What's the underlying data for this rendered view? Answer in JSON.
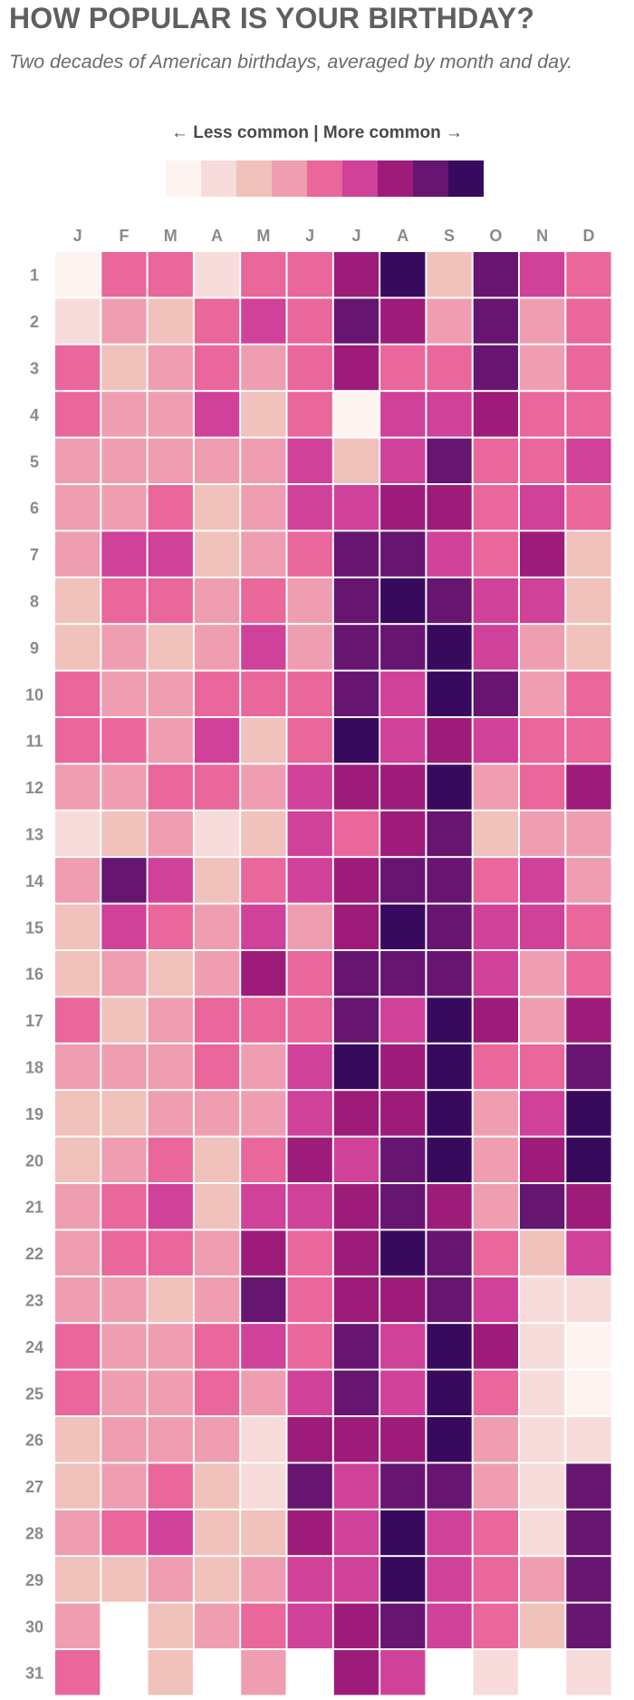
{
  "title": "HOW POPULAR IS YOUR BIRTHDAY?",
  "subtitle": "Two decades of American birthdays, averaged by month and day.",
  "legend": {
    "label": "← Less common | More common →",
    "colors": [
      "#fdf4f1",
      "#f7dcdb",
      "#f1c1bb",
      "#ef9eb1",
      "#e9679a",
      "#d0419a",
      "#9d1c7a",
      "#661571",
      "#380a5e"
    ]
  },
  "chart_data": {
    "type": "heatmap",
    "x": [
      "J",
      "F",
      "M",
      "A",
      "M",
      "J",
      "J",
      "A",
      "S",
      "O",
      "N",
      "D"
    ],
    "y": [
      "1",
      "2",
      "3",
      "4",
      "5",
      "6",
      "7",
      "8",
      "9",
      "10",
      "11",
      "12",
      "13",
      "14",
      "15",
      "16",
      "17",
      "18",
      "19",
      "20",
      "21",
      "22",
      "23",
      "24",
      "25",
      "26",
      "27",
      "28",
      "29",
      "30",
      "31"
    ],
    "value_scale": "popularity level 1 (less common) to 9 (more common); 0 = no such date",
    "values": [
      [
        1,
        5,
        5,
        2,
        5,
        5,
        7,
        9,
        3,
        8,
        6,
        5
      ],
      [
        2,
        4,
        3,
        5,
        6,
        5,
        8,
        7,
        4,
        8,
        4,
        5
      ],
      [
        5,
        3,
        4,
        5,
        4,
        5,
        7,
        5,
        5,
        8,
        4,
        5
      ],
      [
        5,
        4,
        4,
        6,
        3,
        5,
        1,
        6,
        6,
        7,
        5,
        5
      ],
      [
        4,
        4,
        4,
        4,
        4,
        6,
        3,
        6,
        8,
        5,
        5,
        6
      ],
      [
        4,
        4,
        5,
        3,
        4,
        6,
        6,
        7,
        7,
        5,
        6,
        5
      ],
      [
        4,
        6,
        6,
        3,
        4,
        5,
        8,
        8,
        6,
        5,
        7,
        3
      ],
      [
        3,
        5,
        5,
        4,
        5,
        4,
        8,
        9,
        8,
        6,
        6,
        3
      ],
      [
        3,
        4,
        3,
        4,
        6,
        4,
        8,
        8,
        9,
        6,
        4,
        3
      ],
      [
        5,
        4,
        4,
        5,
        5,
        5,
        8,
        6,
        9,
        8,
        4,
        5
      ],
      [
        5,
        5,
        4,
        6,
        3,
        5,
        9,
        6,
        7,
        6,
        5,
        5
      ],
      [
        4,
        4,
        5,
        5,
        4,
        6,
        7,
        7,
        9,
        4,
        5,
        7
      ],
      [
        2,
        3,
        4,
        2,
        3,
        6,
        5,
        7,
        8,
        3,
        4,
        4
      ],
      [
        4,
        8,
        6,
        3,
        5,
        6,
        7,
        8,
        8,
        5,
        6,
        4
      ],
      [
        3,
        6,
        5,
        4,
        6,
        4,
        7,
        9,
        8,
        6,
        6,
        5
      ],
      [
        3,
        4,
        3,
        4,
        7,
        5,
        8,
        8,
        8,
        6,
        4,
        5
      ],
      [
        5,
        3,
        4,
        5,
        5,
        5,
        8,
        6,
        9,
        7,
        4,
        7
      ],
      [
        4,
        4,
        4,
        5,
        4,
        6,
        9,
        7,
        9,
        5,
        5,
        8
      ],
      [
        3,
        3,
        4,
        4,
        4,
        6,
        7,
        7,
        9,
        4,
        6,
        9
      ],
      [
        3,
        4,
        5,
        3,
        5,
        7,
        6,
        8,
        9,
        4,
        7,
        9
      ],
      [
        4,
        5,
        6,
        3,
        6,
        6,
        7,
        8,
        7,
        4,
        8,
        7
      ],
      [
        4,
        5,
        5,
        4,
        7,
        5,
        7,
        9,
        8,
        5,
        3,
        6
      ],
      [
        4,
        4,
        3,
        4,
        8,
        5,
        7,
        7,
        8,
        6,
        2,
        2
      ],
      [
        5,
        4,
        4,
        5,
        6,
        5,
        8,
        6,
        9,
        7,
        2,
        1
      ],
      [
        5,
        4,
        4,
        5,
        4,
        6,
        8,
        6,
        9,
        5,
        2,
        1
      ],
      [
        3,
        4,
        4,
        4,
        2,
        7,
        7,
        7,
        9,
        4,
        2,
        2
      ],
      [
        3,
        4,
        5,
        3,
        2,
        8,
        6,
        8,
        8,
        4,
        2,
        8
      ],
      [
        4,
        5,
        6,
        3,
        3,
        7,
        6,
        9,
        6,
        5,
        2,
        8
      ],
      [
        3,
        3,
        4,
        3,
        4,
        6,
        6,
        9,
        6,
        5,
        4,
        8
      ],
      [
        4,
        0,
        3,
        4,
        5,
        6,
        7,
        8,
        6,
        5,
        3,
        8
      ],
      [
        5,
        0,
        3,
        0,
        4,
        0,
        7,
        6,
        0,
        2,
        0,
        2
      ]
    ],
    "legend_placement": "top-center",
    "grid": false
  }
}
